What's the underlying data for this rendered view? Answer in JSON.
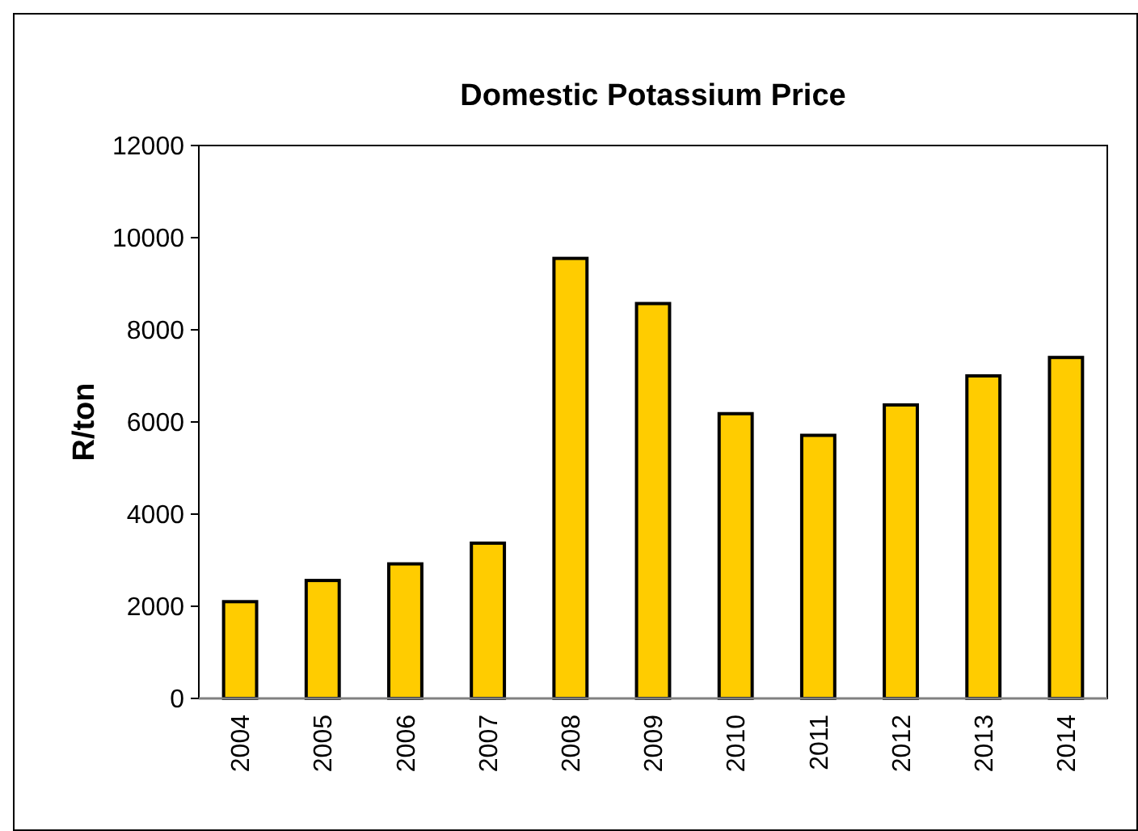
{
  "chart_data": {
    "type": "bar",
    "title": "Domestic Potassium Price",
    "ylabel": "R/ton",
    "categories": [
      "2004",
      "2005",
      "2006",
      "2007",
      "2008",
      "2009",
      "2010",
      "2011",
      "2012",
      "2013",
      "2014"
    ],
    "values": [
      2100,
      2560,
      2920,
      3370,
      9550,
      8570,
      6180,
      5710,
      6370,
      7000,
      7400
    ],
    "color": "#ffcc00",
    "ylim": [
      0,
      12000
    ],
    "yticks": [
      0,
      2000,
      4000,
      6000,
      8000,
      10000,
      12000
    ],
    "grid": false
  }
}
